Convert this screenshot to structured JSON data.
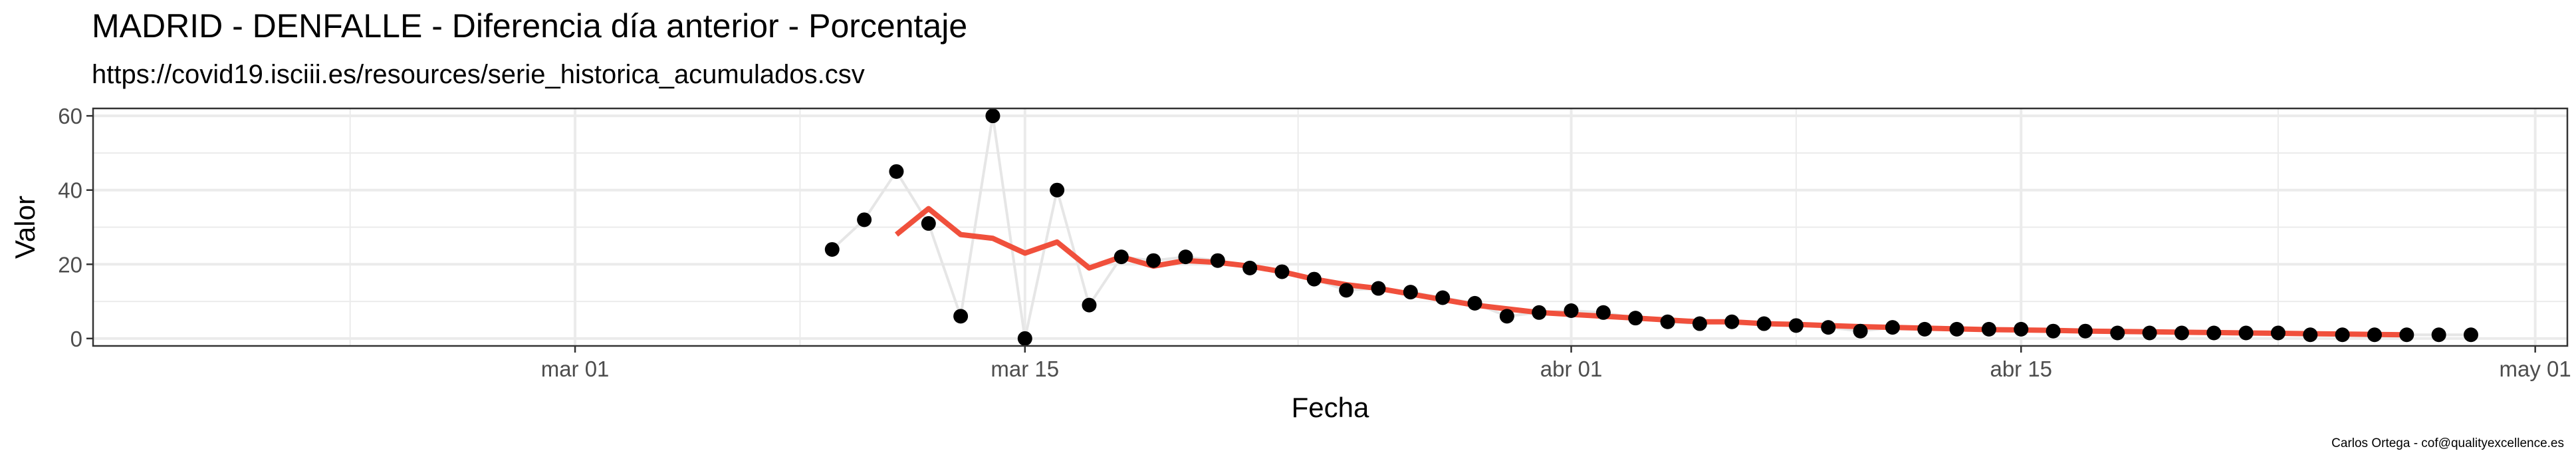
{
  "header": {
    "title": "MADRID - DENFALLE - Diferencia día anterior - Porcentaje",
    "subtitle": "https://covid19.isciii.es/resources/serie_historica_acumulados.csv"
  },
  "footer": {
    "caption": "Carlos Ortega - cof@qualityexcellence.es"
  },
  "colors": {
    "points": "#000000",
    "raw_line": "#e6e6e6",
    "smooth_line": "#f0503c",
    "grid": "#ebebeb",
    "panel_border": "#333333"
  },
  "chart_data": {
    "type": "line",
    "title": "MADRID - DENFALLE - Diferencia día anterior - Porcentaje",
    "subtitle": "https://covid19.isciii.es/resources/serie_historica_acumulados.csv",
    "xlabel": "Fecha",
    "ylabel": "Valor",
    "xlim": [
      "2020-02-15",
      "2020-05-02"
    ],
    "ylim": [
      -2,
      62
    ],
    "x_ticks": [
      {
        "date": "2020-03-01",
        "label": "mar 01"
      },
      {
        "date": "2020-03-15",
        "label": "mar 15"
      },
      {
        "date": "2020-04-01",
        "label": "abr 01"
      },
      {
        "date": "2020-04-15",
        "label": "abr 15"
      },
      {
        "date": "2020-05-01",
        "label": "may 01"
      }
    ],
    "y_ticks": [
      0,
      20,
      40,
      60
    ],
    "grid": true,
    "series": [
      {
        "kind": "points",
        "x": [
          "2020-03-09",
          "2020-03-10",
          "2020-03-11",
          "2020-03-12",
          "2020-03-13",
          "2020-03-14",
          "2020-03-15",
          "2020-03-16",
          "2020-03-17",
          "2020-03-18",
          "2020-03-19",
          "2020-03-20",
          "2020-03-21",
          "2020-03-22",
          "2020-03-23",
          "2020-03-24",
          "2020-03-25",
          "2020-03-26",
          "2020-03-27",
          "2020-03-28",
          "2020-03-29",
          "2020-03-30",
          "2020-03-31",
          "2020-04-01",
          "2020-04-02",
          "2020-04-03",
          "2020-04-04",
          "2020-04-05",
          "2020-04-06",
          "2020-04-07",
          "2020-04-08",
          "2020-04-09",
          "2020-04-10",
          "2020-04-11",
          "2020-04-12",
          "2020-04-13",
          "2020-04-14",
          "2020-04-15",
          "2020-04-16",
          "2020-04-17",
          "2020-04-18",
          "2020-04-19",
          "2020-04-20",
          "2020-04-21",
          "2020-04-22",
          "2020-04-23",
          "2020-04-24",
          "2020-04-25",
          "2020-04-26",
          "2020-04-27",
          "2020-04-28",
          "2020-04-29"
        ],
        "y": [
          24,
          32,
          45,
          31,
          6,
          60,
          0,
          40,
          9,
          22,
          21,
          22,
          21,
          19,
          18,
          16,
          13,
          13.5,
          12.5,
          11,
          9.5,
          6,
          7,
          7.5,
          7,
          5.5,
          4.5,
          4,
          4.5,
          4,
          3.5,
          3,
          2,
          3,
          2.5,
          2.5,
          2.5,
          2.5,
          2,
          2,
          1.5,
          1.5,
          1.5,
          1.5,
          1.5,
          1.5,
          1,
          1,
          1,
          1,
          1,
          1
        ]
      },
      {
        "kind": "smoothed",
        "x": [
          "2020-03-11",
          "2020-03-12",
          "2020-03-13",
          "2020-03-14",
          "2020-03-15",
          "2020-03-16",
          "2020-03-17",
          "2020-03-18",
          "2020-03-19",
          "2020-03-20",
          "2020-03-21",
          "2020-03-22",
          "2020-03-23",
          "2020-03-24",
          "2020-03-25",
          "2020-03-26",
          "2020-03-27",
          "2020-03-28",
          "2020-03-29",
          "2020-03-30",
          "2020-03-31",
          "2020-04-01",
          "2020-04-02",
          "2020-04-03",
          "2020-04-04",
          "2020-04-05",
          "2020-04-06",
          "2020-04-07",
          "2020-04-08",
          "2020-04-09",
          "2020-04-10",
          "2020-04-11",
          "2020-04-12",
          "2020-04-13",
          "2020-04-14",
          "2020-04-15",
          "2020-04-16",
          "2020-04-17",
          "2020-04-18",
          "2020-04-19",
          "2020-04-20",
          "2020-04-21",
          "2020-04-22",
          "2020-04-23",
          "2020-04-24",
          "2020-04-25",
          "2020-04-26",
          "2020-04-27"
        ],
        "y": [
          28,
          35,
          28,
          27,
          23,
          26,
          19,
          22,
          19.5,
          21,
          20.5,
          19.5,
          18,
          16,
          14.5,
          13.5,
          12,
          10.5,
          9,
          8,
          7,
          6.5,
          6,
          5.5,
          5,
          4.5,
          4.5,
          4,
          3.8,
          3.5,
          3.2,
          3,
          2.8,
          2.6,
          2.4,
          2.3,
          2.2,
          2,
          1.9,
          1.8,
          1.7,
          1.6,
          1.5,
          1.4,
          1.3,
          1.2,
          1.1,
          1
        ]
      }
    ]
  }
}
